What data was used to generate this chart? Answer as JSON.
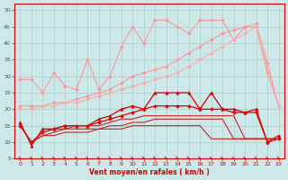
{
  "xlabel": "Vent moyen/en rafales ( km/h )",
  "xlim": [
    -0.5,
    23.5
  ],
  "ylim": [
    5,
    52
  ],
  "yticks": [
    5,
    10,
    15,
    20,
    25,
    30,
    35,
    40,
    45,
    50
  ],
  "xticks": [
    0,
    1,
    2,
    3,
    4,
    5,
    6,
    7,
    8,
    9,
    10,
    11,
    12,
    13,
    14,
    15,
    16,
    17,
    18,
    19,
    20,
    21,
    22,
    23
  ],
  "bg_color": "#cce8e8",
  "grid_color": "#aacccc",
  "lines": [
    {
      "x": [
        0,
        1,
        2,
        3,
        4,
        5,
        6,
        7,
        8,
        9,
        10,
        11,
        12,
        13,
        14,
        15,
        16,
        17,
        18,
        19,
        20,
        21,
        22,
        23
      ],
      "y": [
        29,
        29,
        25,
        31,
        27,
        26,
        35,
        26,
        30,
        39,
        45,
        40,
        47,
        47,
        45,
        43,
        47,
        47,
        47,
        41,
        45,
        45,
        31,
        21
      ],
      "color": "#ff9999",
      "lw": 0.8,
      "marker": "D",
      "ms": 2.0
    },
    {
      "x": [
        0,
        1,
        2,
        3,
        4,
        5,
        6,
        7,
        8,
        9,
        10,
        11,
        12,
        13,
        14,
        15,
        16,
        17,
        18,
        19,
        20,
        21,
        22,
        23
      ],
      "y": [
        21,
        21,
        21,
        22,
        22,
        23,
        24,
        25,
        26,
        28,
        30,
        31,
        32,
        33,
        35,
        37,
        39,
        41,
        43,
        44,
        45,
        46,
        34,
        21
      ],
      "color": "#ff9999",
      "lw": 0.8,
      "marker": "D",
      "ms": 2.0
    },
    {
      "x": [
        0,
        1,
        2,
        3,
        4,
        5,
        6,
        7,
        8,
        9,
        10,
        11,
        12,
        13,
        14,
        15,
        16,
        17,
        18,
        19,
        20,
        21,
        22,
        23
      ],
      "y": [
        20,
        20,
        21,
        21,
        22,
        22,
        23,
        24,
        25,
        26,
        27,
        28,
        29,
        30,
        31,
        33,
        35,
        37,
        39,
        41,
        43,
        45,
        33,
        21
      ],
      "color": "#ffaaaa",
      "lw": 0.8,
      "marker": "D",
      "ms": 2.0
    },
    {
      "x": [
        0,
        1,
        2,
        3,
        4,
        5,
        6,
        7,
        8,
        9,
        10,
        11,
        12,
        13,
        14,
        15,
        16,
        17,
        18,
        19,
        20,
        21,
        22,
        23
      ],
      "y": [
        16,
        9,
        14,
        14,
        15,
        15,
        15,
        17,
        18,
        20,
        21,
        20,
        25,
        25,
        25,
        25,
        20,
        25,
        20,
        20,
        19,
        20,
        10,
        12
      ],
      "color": "#cc0000",
      "lw": 0.9,
      "marker": "^",
      "ms": 2.5
    },
    {
      "x": [
        0,
        1,
        2,
        3,
        4,
        5,
        6,
        7,
        8,
        9,
        10,
        11,
        12,
        13,
        14,
        15,
        16,
        17,
        18,
        19,
        20,
        21,
        22,
        23
      ],
      "y": [
        15,
        10,
        13,
        14,
        15,
        15,
        15,
        16,
        17,
        18,
        19,
        20,
        21,
        21,
        21,
        21,
        20,
        20,
        20,
        19,
        19,
        19,
        10,
        11
      ],
      "color": "#dd0000",
      "lw": 0.9,
      "marker": "D",
      "ms": 2.0
    },
    {
      "x": [
        0,
        1,
        2,
        3,
        4,
        5,
        6,
        7,
        8,
        9,
        10,
        11,
        12,
        13,
        14,
        15,
        16,
        17,
        18,
        19,
        20,
        21,
        22,
        23
      ],
      "y": [
        15,
        10,
        13,
        14,
        14,
        15,
        15,
        15,
        16,
        17,
        17,
        18,
        18,
        18,
        18,
        18,
        18,
        18,
        18,
        18,
        11,
        11,
        11,
        11
      ],
      "color": "#cc2222",
      "lw": 0.8,
      "marker": null,
      "ms": 0
    },
    {
      "x": [
        0,
        1,
        2,
        3,
        4,
        5,
        6,
        7,
        8,
        9,
        10,
        11,
        12,
        13,
        14,
        15,
        16,
        17,
        18,
        19,
        20,
        21,
        22,
        23
      ],
      "y": [
        15,
        10,
        12,
        13,
        14,
        14,
        14,
        14,
        15,
        15,
        16,
        16,
        17,
        17,
        17,
        17,
        17,
        17,
        17,
        11,
        11,
        11,
        11,
        11
      ],
      "color": "#cc2222",
      "lw": 0.8,
      "marker": null,
      "ms": 0
    },
    {
      "x": [
        0,
        1,
        2,
        3,
        4,
        5,
        6,
        7,
        8,
        9,
        10,
        11,
        12,
        13,
        14,
        15,
        16,
        17,
        18,
        19,
        20,
        21,
        22,
        23
      ],
      "y": [
        15,
        10,
        12,
        12,
        13,
        13,
        13,
        14,
        14,
        14,
        15,
        15,
        15,
        15,
        15,
        15,
        15,
        11,
        11,
        11,
        11,
        11,
        11,
        11
      ],
      "color": "#cc2222",
      "lw": 0.8,
      "marker": null,
      "ms": 0
    }
  ]
}
